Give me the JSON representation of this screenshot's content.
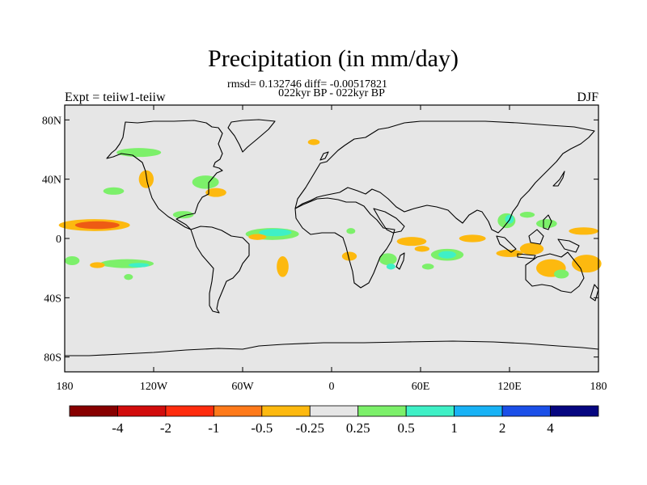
{
  "title": "Precipitation (in mm/day)",
  "stats_line": "rmsd= 0.132746 diff= -0.00517821",
  "period_line": "022kyr BP - 022kyr BP",
  "experiment": "Expt = teiiw1-teiiw",
  "season": "DJF",
  "map": {
    "lon_range": [
      -180,
      180
    ],
    "lat_range": [
      -90,
      90
    ],
    "background_color": "#e6e6e6",
    "lat_ticks": [
      {
        "lat": 80,
        "label": "80N"
      },
      {
        "lat": 40,
        "label": "40N"
      },
      {
        "lat": 0,
        "label": "0"
      },
      {
        "lat": -40,
        "label": "40S"
      },
      {
        "lat": -80,
        "label": "80S"
      }
    ],
    "lon_ticks": [
      {
        "lon": -180,
        "label": "180"
      },
      {
        "lon": -120,
        "label": "120W"
      },
      {
        "lon": -60,
        "label": "60W"
      },
      {
        "lon": 0,
        "label": "0"
      },
      {
        "lon": 60,
        "label": "60E"
      },
      {
        "lon": 120,
        "label": "120E"
      },
      {
        "lon": 180,
        "label": "180"
      }
    ],
    "anomaly_patches": [
      {
        "lon": -160,
        "lat": 9,
        "rx": 24,
        "ry": 4,
        "color": "#fdb90f"
      },
      {
        "lon": -158,
        "lat": 9,
        "rx": 15,
        "ry": 2.6,
        "color": "#ee5b14"
      },
      {
        "lon": -130,
        "lat": 58,
        "rx": 15,
        "ry": 3,
        "color": "#7cf06a"
      },
      {
        "lon": -147,
        "lat": 32,
        "rx": 7,
        "ry": 2.5,
        "color": "#7cf06a"
      },
      {
        "lon": -125,
        "lat": 40,
        "rx": 5,
        "ry": 6,
        "color": "#fdb90f"
      },
      {
        "lon": -85,
        "lat": 38,
        "rx": 9,
        "ry": 4.5,
        "color": "#7cf06a"
      },
      {
        "lon": -78,
        "lat": 31,
        "rx": 7,
        "ry": 3,
        "color": "#fdb90f"
      },
      {
        "lon": -100,
        "lat": 16,
        "rx": 7,
        "ry": 2.5,
        "color": "#7cf06a"
      },
      {
        "lon": -40,
        "lat": 3,
        "rx": 18,
        "ry": 4,
        "color": "#7cf06a"
      },
      {
        "lon": -38,
        "lat": 4,
        "rx": 11,
        "ry": 2.5,
        "color": "#3ff0c6"
      },
      {
        "lon": -50,
        "lat": 1,
        "rx": 6,
        "ry": 2,
        "color": "#fdb90f"
      },
      {
        "lon": -33,
        "lat": -19,
        "rx": 4,
        "ry": 7,
        "color": "#fdb90f"
      },
      {
        "lon": -138,
        "lat": -17,
        "rx": 18,
        "ry": 3,
        "color": "#7cf06a"
      },
      {
        "lon": -130,
        "lat": -18,
        "rx": 7,
        "ry": 1.5,
        "color": "#3ff0c6"
      },
      {
        "lon": -158,
        "lat": -18,
        "rx": 5,
        "ry": 2,
        "color": "#fdb90f"
      },
      {
        "lon": -175,
        "lat": -15,
        "rx": 5,
        "ry": 3,
        "color": "#7cf06a"
      },
      {
        "lon": -137,
        "lat": -26,
        "rx": 3,
        "ry": 2,
        "color": "#7cf06a"
      },
      {
        "lon": -12,
        "lat": 65,
        "rx": 4,
        "ry": 2,
        "color": "#fdb90f"
      },
      {
        "lon": 12,
        "lat": -12,
        "rx": 5,
        "ry": 3,
        "color": "#fdb90f"
      },
      {
        "lon": 13,
        "lat": 5,
        "rx": 3,
        "ry": 2,
        "color": "#7cf06a"
      },
      {
        "lon": 38,
        "lat": -14,
        "rx": 6,
        "ry": 4,
        "color": "#7cf06a"
      },
      {
        "lon": 40,
        "lat": -19,
        "rx": 3,
        "ry": 2,
        "color": "#3ff0c6"
      },
      {
        "lon": 54,
        "lat": -2,
        "rx": 10,
        "ry": 3,
        "color": "#fdb90f"
      },
      {
        "lon": 61,
        "lat": -7,
        "rx": 5,
        "ry": 2,
        "color": "#fdb90f"
      },
      {
        "lon": 78,
        "lat": -11,
        "rx": 11,
        "ry": 4,
        "color": "#7cf06a"
      },
      {
        "lon": 78,
        "lat": -11,
        "rx": 6,
        "ry": 2.5,
        "color": "#3ff0c6"
      },
      {
        "lon": 65,
        "lat": -19,
        "rx": 4,
        "ry": 2,
        "color": "#7cf06a"
      },
      {
        "lon": 95,
        "lat": 0,
        "rx": 9,
        "ry": 2.5,
        "color": "#fdb90f"
      },
      {
        "lon": 118,
        "lat": 12,
        "rx": 6,
        "ry": 5,
        "color": "#7cf06a"
      },
      {
        "lon": 120,
        "lat": 13,
        "rx": 3,
        "ry": 3,
        "color": "#3ff0c6"
      },
      {
        "lon": 132,
        "lat": 16,
        "rx": 5,
        "ry": 2,
        "color": "#7cf06a"
      },
      {
        "lon": 145,
        "lat": 10,
        "rx": 7,
        "ry": 3,
        "color": "#7cf06a"
      },
      {
        "lon": 170,
        "lat": 5,
        "rx": 10,
        "ry": 2.5,
        "color": "#fdb90f"
      },
      {
        "lon": 135,
        "lat": -7,
        "rx": 8,
        "ry": 4,
        "color": "#fdb90f"
      },
      {
        "lon": 120,
        "lat": -10,
        "rx": 9,
        "ry": 2.5,
        "color": "#fdb90f"
      },
      {
        "lon": 148,
        "lat": -20,
        "rx": 10,
        "ry": 6,
        "color": "#fdb90f"
      },
      {
        "lon": 172,
        "lat": -17,
        "rx": 10,
        "ry": 6,
        "color": "#fdb90f"
      },
      {
        "lon": 155,
        "lat": -24,
        "rx": 5,
        "ry": 3,
        "color": "#7cf06a"
      }
    ]
  },
  "colorbar": {
    "colors": [
      "#870000",
      "#d10c0c",
      "#ff2c0e",
      "#ff7a1a",
      "#fdb90f",
      "#e6e6e6",
      "#7cf06a",
      "#3ff0c6",
      "#18b2f5",
      "#1b4fe8",
      "#060680"
    ],
    "labels": [
      "-4",
      "-2",
      "-1",
      "-0.5",
      "-0.25",
      "0.25",
      "0.5",
      "1",
      "2",
      "4"
    ]
  }
}
